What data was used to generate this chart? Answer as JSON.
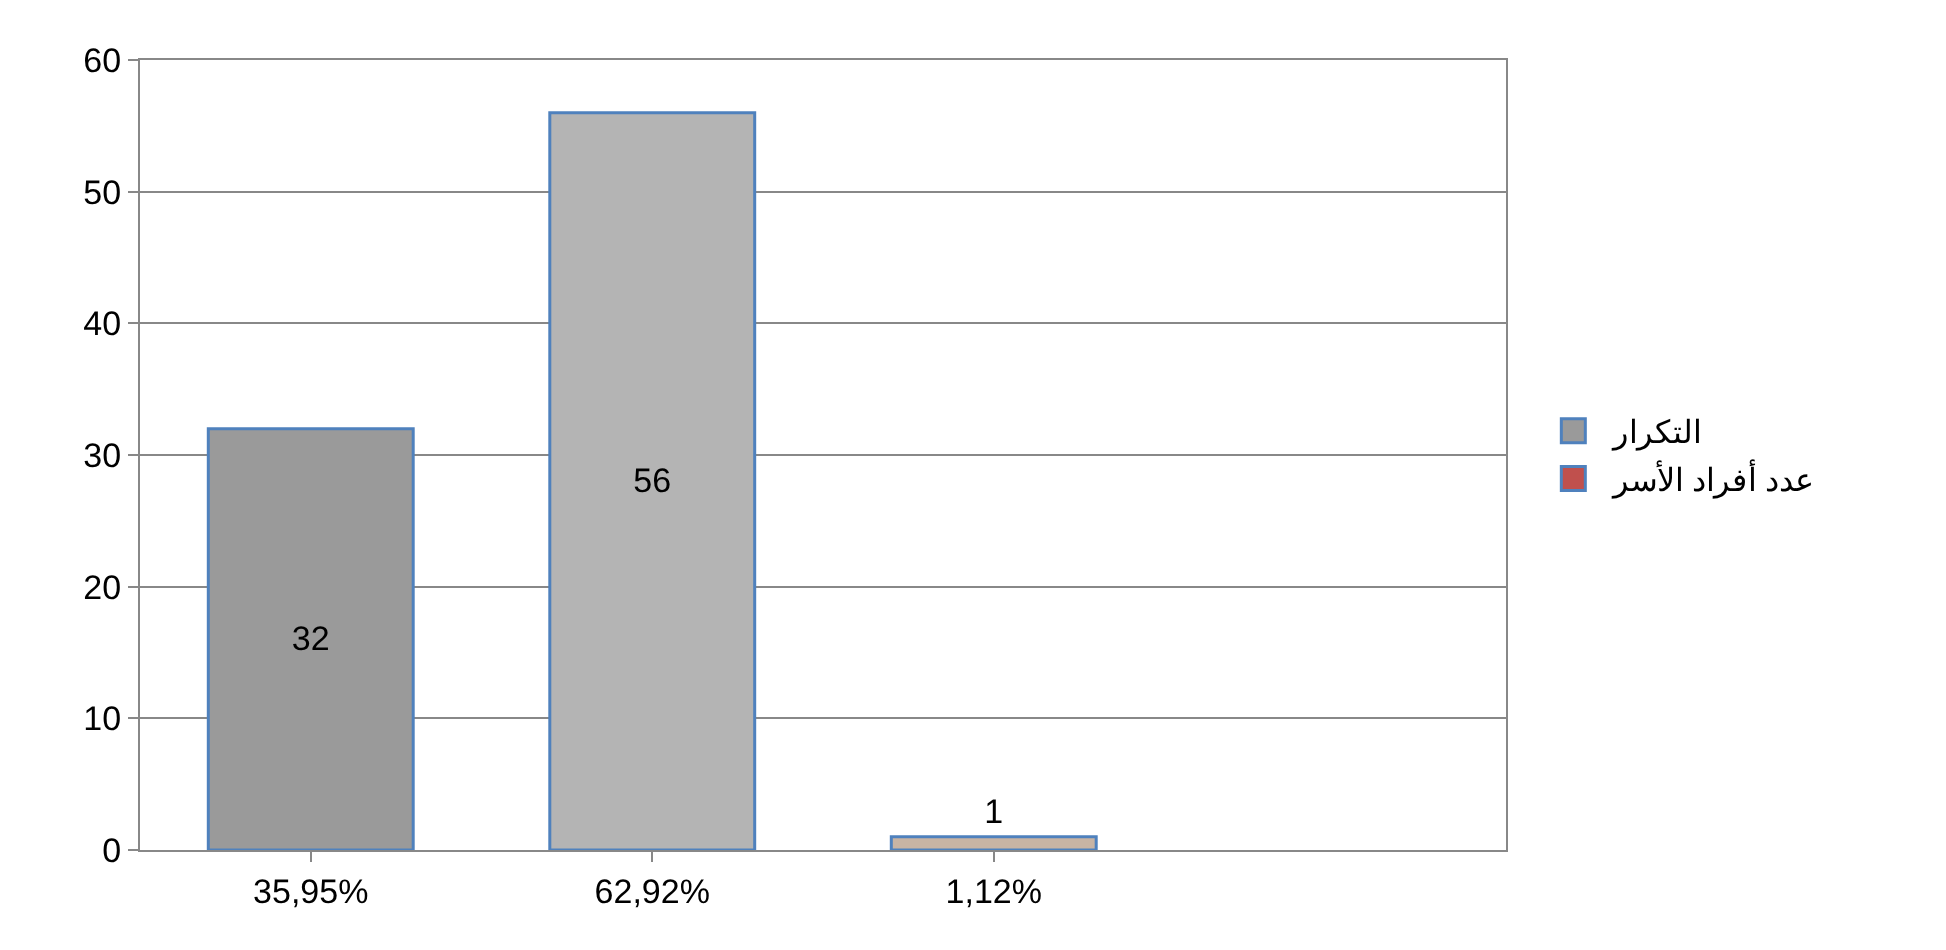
{
  "chart_data": {
    "type": "bar",
    "categories": [
      "35,95%",
      "62,92%",
      "1,12%",
      null
    ],
    "series": [
      {
        "name": "التكرار",
        "color": "#c8c4c0",
        "colors": [
          "#9a9a9a",
          "#b4b4b4",
          "#c8b4a4",
          null
        ],
        "values": [
          32,
          56,
          1,
          null
        ]
      },
      {
        "name": "عدد أفراد الأسر",
        "color": "#c0504d",
        "values": [
          null,
          null,
          null,
          null
        ]
      }
    ],
    "ylim": [
      0,
      60
    ],
    "yticks": [
      0,
      10,
      20,
      30,
      40,
      50,
      60
    ],
    "grid": "y",
    "legend": "right",
    "data_labels": true
  }
}
